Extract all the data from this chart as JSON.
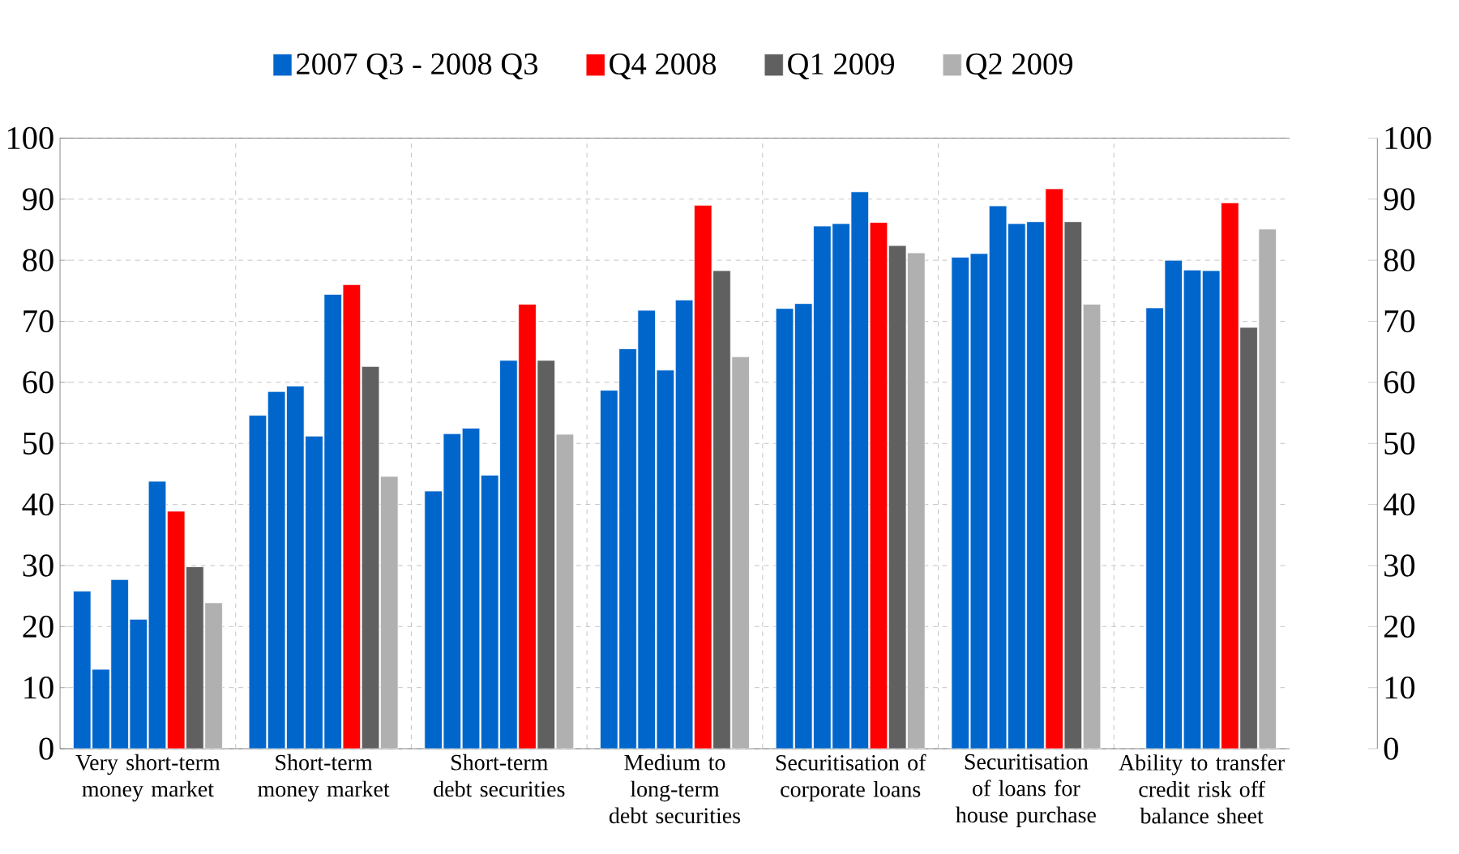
{
  "chart_data": {
    "type": "bar",
    "categories": [
      "Very short-term money market",
      "Short-term money market",
      "Short-term debt securities",
      "Medium to long-term debt securities",
      "Securitisation of corporate loans",
      "Securitisation of loans for house purchase",
      "Ability to transfer credit risk off balance sheet"
    ],
    "series": [
      {
        "name": "2007 Q3 - 2008 Q3",
        "color": "#0066cc",
        "values": [
          25.8,
          54.6,
          42.2,
          58.7,
          72.1,
          80.5,
          null
        ]
      },
      {
        "color": "#0066cc",
        "values": [
          13.0,
          58.5,
          51.6,
          65.5,
          72.9,
          81.1,
          72.2
        ]
      },
      {
        "color": "#0066cc",
        "values": [
          27.7,
          59.4,
          52.5,
          71.8,
          85.6,
          88.9,
          80.0
        ]
      },
      {
        "color": "#0066cc",
        "values": [
          21.2,
          51.2,
          44.8,
          62.0,
          86.0,
          86.0,
          78.4
        ]
      },
      {
        "color": "#0066cc",
        "values": [
          43.8,
          74.4,
          63.6,
          73.5,
          91.2,
          86.3,
          78.3
        ]
      },
      {
        "name": "Q4 2008",
        "color": "#ff0000",
        "values": [
          38.9,
          76.0,
          72.8,
          89.0,
          86.2,
          91.7,
          89.4
        ]
      },
      {
        "name": "Q1 2009",
        "color": "#606060",
        "values": [
          29.8,
          62.6,
          63.6,
          78.3,
          82.4,
          86.3,
          69.0
        ]
      },
      {
        "name": "Q2 2009",
        "color": "#b0b0b0",
        "values": [
          23.9,
          44.6,
          51.5,
          64.2,
          81.2,
          72.8,
          85.1
        ]
      }
    ],
    "ylim": [
      0,
      100
    ],
    "yticks": [
      0,
      10,
      20,
      30,
      40,
      50,
      60,
      70,
      80,
      90,
      100
    ],
    "y2lim": [
      0,
      100
    ],
    "y2ticks": [
      0,
      10,
      20,
      30,
      40,
      50,
      60,
      70,
      80,
      90,
      100
    ],
    "grid": true,
    "legend": "top"
  }
}
